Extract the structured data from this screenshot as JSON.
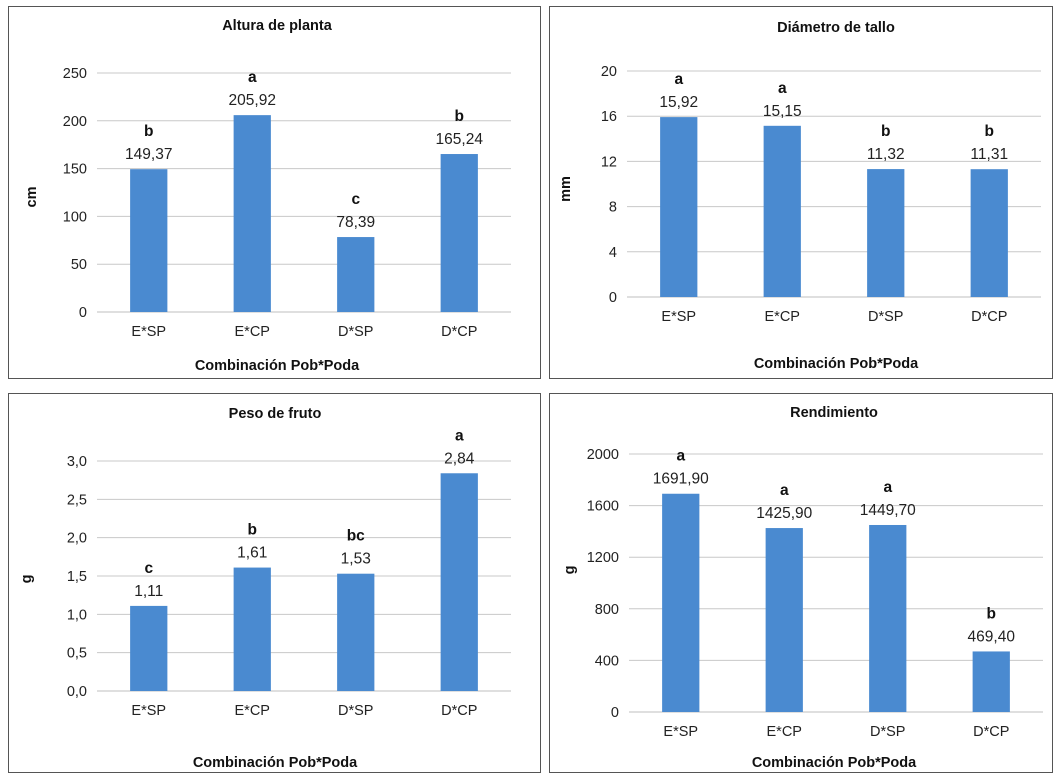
{
  "colors": {
    "bar": "#4a8ad0",
    "grid": "#c8c8c8",
    "axis": "#bfbfbf"
  },
  "chart_data": [
    {
      "type": "bar",
      "title": "Altura de planta",
      "xlabel": "Combinación Pob*Poda",
      "ylabel": "cm",
      "categories": [
        "E*SP",
        "E*CP",
        "D*SP",
        "D*CP"
      ],
      "values": [
        149.37,
        205.92,
        78.39,
        165.24
      ],
      "value_labels": [
        "149,37",
        "205,92",
        "78,39",
        "165,24"
      ],
      "letters": [
        "b",
        "a",
        "c",
        "b"
      ],
      "ylim": [
        0,
        250
      ],
      "yticks": [
        "0",
        "50",
        "100",
        "150",
        "200",
        "250"
      ],
      "grid": true
    },
    {
      "type": "bar",
      "title": "Diámetro de tallo",
      "xlabel": "Combinación Pob*Poda",
      "ylabel": "mm",
      "categories": [
        "E*SP",
        "E*CP",
        "D*SP",
        "D*CP"
      ],
      "values": [
        15.92,
        15.15,
        11.32,
        11.31
      ],
      "value_labels": [
        "15,92",
        "15,15",
        "11,32",
        "11,31"
      ],
      "letters": [
        "a",
        "a",
        "b",
        "b"
      ],
      "ylim": [
        0,
        20
      ],
      "yticks": [
        "0",
        "4",
        "8",
        "12",
        "16",
        "20"
      ],
      "grid": true
    },
    {
      "type": "bar",
      "title": "Peso de fruto",
      "xlabel": "Combinación Pob*Poda",
      "ylabel": "g",
      "categories": [
        "E*SP",
        "E*CP",
        "D*SP",
        "D*CP"
      ],
      "values": [
        1.11,
        1.61,
        1.53,
        2.84
      ],
      "value_labels": [
        "1,11",
        "1,61",
        "1,53",
        "2,84"
      ],
      "letters": [
        "c",
        "b",
        "bc",
        "a"
      ],
      "ylim": [
        0,
        3
      ],
      "yticks": [
        "0,0",
        "0,5",
        "1,0",
        "1,5",
        "2,0",
        "2,5",
        "3,0"
      ],
      "grid": true
    },
    {
      "type": "bar",
      "title": "Rendimiento",
      "xlabel": "Combinación Pob*Poda",
      "ylabel": "g",
      "categories": [
        "E*SP",
        "E*CP",
        "D*SP",
        "D*CP"
      ],
      "values": [
        1691.9,
        1425.9,
        1449.7,
        469.4
      ],
      "value_labels": [
        "1691,90",
        "1425,90",
        "1449,70",
        "469,40"
      ],
      "letters": [
        "a",
        "a",
        "a",
        "b"
      ],
      "ylim": [
        0,
        2000
      ],
      "yticks": [
        "0",
        "400",
        "800",
        "1200",
        "1600",
        "2000"
      ],
      "grid": true
    }
  ]
}
